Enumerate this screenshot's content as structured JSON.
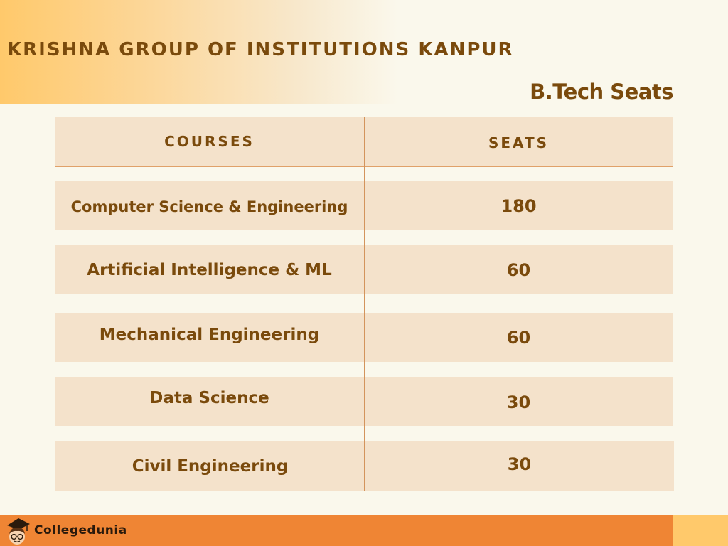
{
  "header": {
    "institution": "KRISHNA GROUP OF INSTITUTIONS KANPUR",
    "subtitle": "B.Tech Seats"
  },
  "table": {
    "columns": [
      "COURSES",
      "SEATS"
    ],
    "rows": [
      {
        "course": "Computer Science & Engineering",
        "seats": "180"
      },
      {
        "course": "Artificial Intelligence & ML",
        "seats": "60"
      },
      {
        "course": "Mechanical Engineering",
        "seats": "60"
      },
      {
        "course": "Data Science",
        "seats": "30"
      },
      {
        "course": "Civil Engineering",
        "seats": "30"
      }
    ]
  },
  "footer": {
    "brand": "Collegedunia"
  },
  "colors": {
    "text": "#7a4a0c",
    "row_bg": "#f4e2cb",
    "footer_bar": "#ef8534",
    "accent": "#ffc96b",
    "page_bg": "#faf8ec"
  }
}
